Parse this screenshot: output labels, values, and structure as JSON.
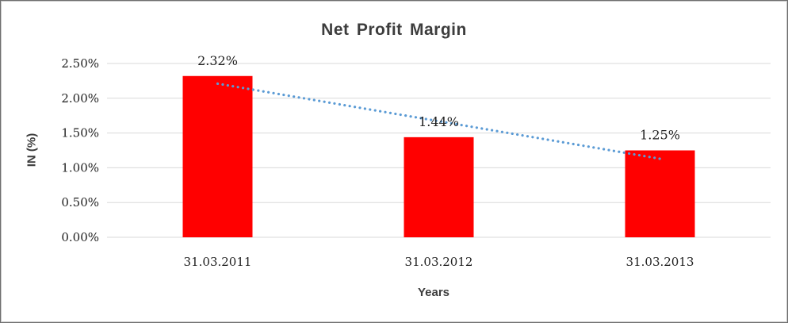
{
  "chart_data": {
    "type": "bar",
    "title": "Net Profit Margin",
    "xlabel": "Years",
    "ylabel": "IN (%)",
    "categories": [
      "31.03.2011",
      "31.03.2012",
      "31.03.2013"
    ],
    "series": [
      {
        "name": "Net Profit Margin",
        "values": [
          2.32,
          1.44,
          1.25
        ]
      }
    ],
    "data_labels": [
      "2.32%",
      "1.44%",
      "1.25%"
    ],
    "y_ticks": [
      {
        "value": 0.0,
        "label": "0.00%"
      },
      {
        "value": 0.5,
        "label": "0.50%"
      },
      {
        "value": 1.0,
        "label": "1.00%"
      },
      {
        "value": 1.5,
        "label": "1.50%"
      },
      {
        "value": 2.0,
        "label": "2.00%"
      },
      {
        "value": 2.5,
        "label": "2.50%"
      }
    ],
    "ylim": [
      0,
      2.5
    ],
    "grid": "horizontal",
    "legend_position": "none",
    "bar_color": "#FF0000",
    "gridline_color": "#d9d9d9",
    "trendline": {
      "type": "linear",
      "style": "dotted",
      "color": "#5B9BD5",
      "start_value": 2.21,
      "end_value": 1.13
    }
  }
}
